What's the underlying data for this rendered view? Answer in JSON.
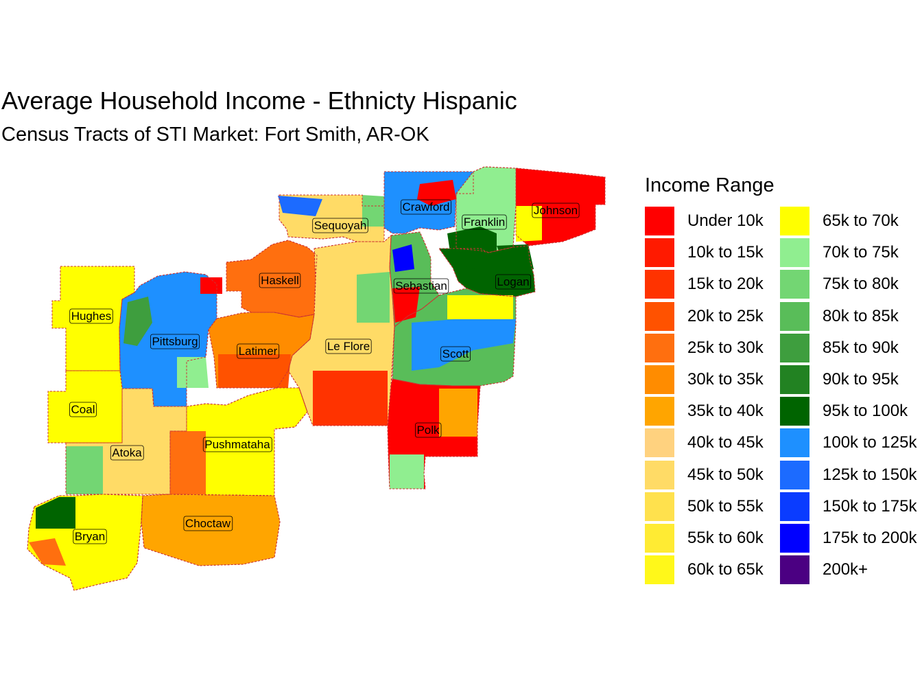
{
  "title": "Average Household Income - Ethnicty Hispanic",
  "subtitle": "Census Tracts of STI Market: Fort Smith, AR-OK",
  "legend": {
    "title": "Income Range",
    "items": [
      {
        "label": "Under 10k",
        "color": "#FF0000"
      },
      {
        "label": "10k to 15k",
        "color": "#FF1A00"
      },
      {
        "label": "15k to 20k",
        "color": "#FF3300"
      },
      {
        "label": "20k to 25k",
        "color": "#FF5200"
      },
      {
        "label": "25k to 30k",
        "color": "#FF6F0F"
      },
      {
        "label": "30k to 35k",
        "color": "#FF8C00"
      },
      {
        "label": "35k to 40k",
        "color": "#FFA500"
      },
      {
        "label": "40k to 45k",
        "color": "#FFD27F"
      },
      {
        "label": "45k to 50k",
        "color": "#FFDB66"
      },
      {
        "label": "50k to 55k",
        "color": "#FFE14D"
      },
      {
        "label": "55k to 60k",
        "color": "#FFEB33"
      },
      {
        "label": "60k to 65k",
        "color": "#FFF81A"
      },
      {
        "label": "65k to 70k",
        "color": "#FFFF00"
      },
      {
        "label": "70k to 75k",
        "color": "#90EE90"
      },
      {
        "label": "75k to 80k",
        "color": "#73D673"
      },
      {
        "label": "80k to 85k",
        "color": "#59BD59"
      },
      {
        "label": "85k to 90k",
        "color": "#3E9E3E"
      },
      {
        "label": "90k to 95k",
        "color": "#228222"
      },
      {
        "label": "95k to 100k",
        "color": "#006400"
      },
      {
        "label": "100k to 125k",
        "color": "#1E90FF"
      },
      {
        "label": "125k to 150k",
        "color": "#1C6BFF"
      },
      {
        "label": "150k to 175k",
        "color": "#0A3CFF"
      },
      {
        "label": "175k to 200k",
        "color": "#0000FF"
      },
      {
        "label": "200k+",
        "color": "#4B0082"
      }
    ]
  },
  "counties": [
    {
      "name": "Sequoyah",
      "income": "45k to 50k"
    },
    {
      "name": "Crawford",
      "income": "100k to 125k"
    },
    {
      "name": "Franklin",
      "income": "70k to 75k"
    },
    {
      "name": "Johnson",
      "income": "Under 10k"
    },
    {
      "name": "Haskell",
      "income": "25k to 30k"
    },
    {
      "name": "Sebastian",
      "income": "80k to 85k"
    },
    {
      "name": "Logan",
      "income": "95k to 100k"
    },
    {
      "name": "Hughes",
      "income": "65k to 70k"
    },
    {
      "name": "Pittsburg",
      "income": "100k to 125k"
    },
    {
      "name": "Latimer",
      "income": "30k to 35k"
    },
    {
      "name": "Le Flore",
      "income": "45k to 50k"
    },
    {
      "name": "Scott",
      "income": "80k to 85k"
    },
    {
      "name": "Coal",
      "income": "65k to 70k"
    },
    {
      "name": "Atoka",
      "income": "45k to 50k"
    },
    {
      "name": "Pushmataha",
      "income": "65k to 70k"
    },
    {
      "name": "Polk",
      "income": "Under 10k"
    },
    {
      "name": "Bryan",
      "income": "65k to 70k"
    },
    {
      "name": "Choctaw",
      "income": "35k to 40k"
    }
  ]
}
